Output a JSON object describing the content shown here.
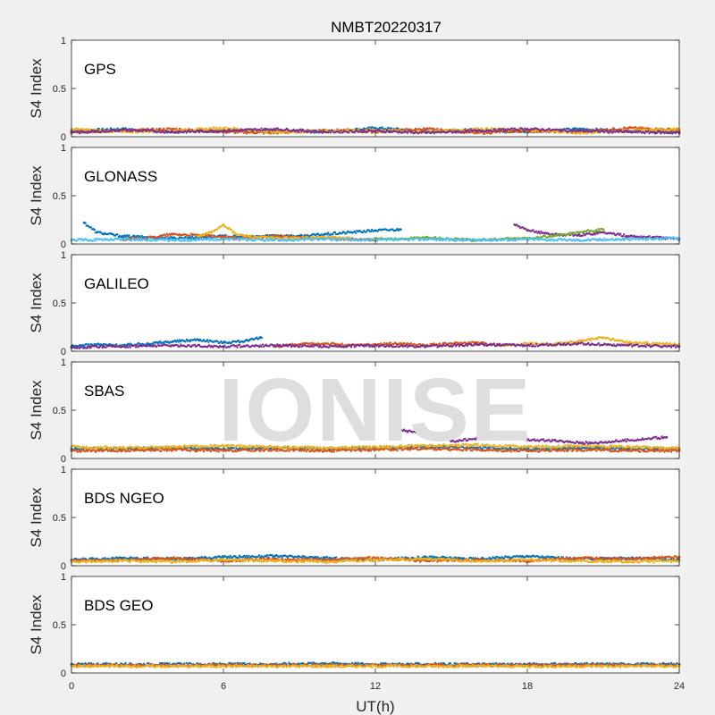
{
  "chart_data": {
    "type": "scatter",
    "title": "NMBT20220317",
    "xlabel": "UT(h)",
    "xlim": [
      0,
      24
    ],
    "xticks": [
      0,
      6,
      12,
      18,
      24
    ],
    "watermark": "IONISE",
    "colors": [
      "#0072BD",
      "#D95319",
      "#EDB120",
      "#7E2F8E",
      "#77AC30",
      "#4DBEEE",
      "#A2142F"
    ],
    "panels": [
      {
        "label": "GPS",
        "ylabel": "S4 Index",
        "ylim": [
          0,
          1
        ],
        "yticks": [
          "0",
          "0.5",
          "1"
        ],
        "series": [
          {
            "x": [
              0,
              2,
              4,
              6,
              8,
              10,
              12,
              14,
              16,
              18,
              20,
              22,
              24
            ],
            "y": [
              0.06,
              0.08,
              0.05,
              0.07,
              0.06,
              0.05,
              0.09,
              0.06,
              0.07,
              0.05,
              0.08,
              0.06,
              0.05
            ]
          },
          {
            "x": [
              0,
              2,
              4,
              6,
              8,
              10,
              12,
              14,
              16,
              18,
              20,
              22,
              24
            ],
            "y": [
              0.05,
              0.06,
              0.08,
              0.05,
              0.04,
              0.07,
              0.05,
              0.08,
              0.04,
              0.06,
              0.05,
              0.09,
              0.07
            ]
          },
          {
            "x": [
              0,
              2,
              4,
              6,
              8,
              10,
              12,
              14,
              16,
              18,
              20,
              22,
              24
            ],
            "y": [
              0.08,
              0.05,
              0.06,
              0.09,
              0.05,
              0.06,
              0.07,
              0.05,
              0.08,
              0.07,
              0.04,
              0.06,
              0.08
            ]
          },
          {
            "x": [
              0,
              2,
              4,
              6,
              8,
              10,
              12,
              14,
              16,
              18,
              20,
              22,
              24
            ],
            "y": [
              0.04,
              0.07,
              0.05,
              0.06,
              0.08,
              0.05,
              0.06,
              0.04,
              0.06,
              0.08,
              0.06,
              0.05,
              0.04
            ]
          }
        ]
      },
      {
        "label": "GLONASS",
        "ylabel": "S4 Index",
        "ylim": [
          0,
          1
        ],
        "yticks": [
          "0",
          "0.5",
          "1"
        ],
        "series": [
          {
            "x": [
              0.5,
              1,
              2,
              3,
              4,
              5,
              6,
              7,
              8,
              9,
              10,
              11,
              12,
              13
            ],
            "y": [
              0.22,
              0.12,
              0.08,
              0.07,
              0.06,
              0.07,
              0.08,
              0.07,
              0.09,
              0.08,
              0.1,
              0.12,
              0.14,
              0.15
            ]
          },
          {
            "x": [
              2,
              3,
              4,
              5,
              6,
              7,
              8,
              9,
              10,
              11,
              12
            ],
            "y": [
              0.05,
              0.06,
              0.1,
              0.09,
              0.07,
              0.06,
              0.08,
              0.07,
              0.06,
              0.05,
              0.04
            ]
          },
          {
            "x": [
              5,
              5.5,
              6,
              6.5,
              7,
              8,
              9,
              10,
              11
            ],
            "y": [
              0.08,
              0.12,
              0.2,
              0.1,
              0.08,
              0.06,
              0.06,
              0.07,
              0.06
            ]
          },
          {
            "x": [
              17.5,
              18,
              19,
              20,
              21,
              22,
              23,
              24
            ],
            "y": [
              0.2,
              0.14,
              0.1,
              0.09,
              0.12,
              0.08,
              0.07,
              0.05
            ]
          },
          {
            "x": [
              12,
              13,
              14,
              15,
              16,
              17,
              18,
              19,
              20,
              21
            ],
            "y": [
              0.06,
              0.05,
              0.07,
              0.05,
              0.04,
              0.05,
              0.06,
              0.08,
              0.12,
              0.15
            ]
          },
          {
            "x": [
              0,
              2,
              4,
              6,
              8,
              10,
              12,
              14,
              16,
              18,
              20,
              22,
              24
            ],
            "y": [
              0.04,
              0.05,
              0.04,
              0.05,
              0.04,
              0.05,
              0.04,
              0.05,
              0.04,
              0.05,
              0.04,
              0.05,
              0.06
            ]
          }
        ]
      },
      {
        "label": "GALILEO",
        "ylabel": "S4 Index",
        "ylim": [
          0,
          1
        ],
        "yticks": [
          "0",
          "0.5",
          "1"
        ],
        "series": [
          {
            "x": [
              0,
              1,
              2,
              3,
              4,
              5,
              6,
              7,
              7.5
            ],
            "y": [
              0.05,
              0.07,
              0.06,
              0.08,
              0.1,
              0.12,
              0.09,
              0.11,
              0.14
            ]
          },
          {
            "x": [
              8,
              9,
              10,
              11,
              12,
              13,
              14,
              15,
              16,
              17
            ],
            "y": [
              0.05,
              0.07,
              0.08,
              0.06,
              0.07,
              0.08,
              0.06,
              0.08,
              0.09,
              0.06
            ]
          },
          {
            "x": [
              17,
              18,
              19,
              20,
              21,
              22,
              23,
              24
            ],
            "y": [
              0.06,
              0.08,
              0.07,
              0.1,
              0.14,
              0.09,
              0.08,
              0.07
            ]
          },
          {
            "x": [
              0,
              2,
              4,
              6,
              8,
              10,
              12,
              14,
              16,
              18,
              20,
              22,
              24
            ],
            "y": [
              0.04,
              0.05,
              0.06,
              0.05,
              0.06,
              0.05,
              0.06,
              0.05,
              0.07,
              0.06,
              0.08,
              0.06,
              0.05
            ]
          }
        ]
      },
      {
        "label": "SBAS",
        "ylabel": "S4 Index",
        "ylim": [
          0,
          1
        ],
        "yticks": [
          "0",
          "0.5",
          "1"
        ],
        "series": [
          {
            "x": [
              0,
              2,
              4,
              6,
              8,
              10,
              12,
              14,
              16,
              18,
              20,
              22,
              24
            ],
            "y": [
              0.1,
              0.1,
              0.11,
              0.1,
              0.11,
              0.1,
              0.11,
              0.12,
              0.11,
              0.1,
              0.11,
              0.1,
              0.1
            ]
          },
          {
            "x": [
              0,
              2,
              4,
              6,
              8,
              10,
              12,
              14,
              16,
              18,
              20,
              22,
              24
            ],
            "y": [
              0.08,
              0.08,
              0.09,
              0.08,
              0.09,
              0.08,
              0.09,
              0.1,
              0.09,
              0.08,
              0.09,
              0.08,
              0.08
            ]
          },
          {
            "x": [
              0,
              2,
              4,
              6,
              8,
              10,
              12,
              14,
              16,
              18,
              20,
              22,
              24
            ],
            "y": [
              0.12,
              0.11,
              0.12,
              0.13,
              0.12,
              0.11,
              0.12,
              0.13,
              0.14,
              0.12,
              0.13,
              0.12,
              0.11
            ]
          },
          {
            "x": [
              13,
              14.5,
              15,
              16.5,
              20.5,
              23.5
            ],
            "y": [
              0.3,
              0.22,
              0.18,
              0.22,
              0.16,
              0.22
            ]
          }
        ]
      },
      {
        "label": "BDS NGEO",
        "ylabel": "S4 Index",
        "ylim": [
          0,
          1
        ],
        "yticks": [
          "0",
          "0.5",
          "1"
        ],
        "series": [
          {
            "x": [
              0,
              2,
              4,
              6,
              8,
              10,
              12,
              14,
              16,
              18,
              20,
              22,
              24
            ],
            "y": [
              0.06,
              0.08,
              0.07,
              0.09,
              0.1,
              0.08,
              0.06,
              0.09,
              0.07,
              0.1,
              0.07,
              0.08,
              0.06
            ]
          },
          {
            "x": [
              0,
              2,
              4,
              6,
              8,
              10,
              12,
              14,
              16,
              18,
              20,
              22,
              24
            ],
            "y": [
              0.05,
              0.06,
              0.08,
              0.05,
              0.07,
              0.06,
              0.08,
              0.05,
              0.06,
              0.05,
              0.08,
              0.07,
              0.09
            ]
          },
          {
            "x": [
              0,
              2,
              4,
              6,
              8,
              10,
              12,
              14,
              16,
              18,
              20,
              22,
              24
            ],
            "y": [
              0.04,
              0.05,
              0.04,
              0.06,
              0.05,
              0.04,
              0.06,
              0.07,
              0.05,
              0.06,
              0.05,
              0.04,
              0.05
            ]
          }
        ]
      },
      {
        "label": "BDS GEO",
        "ylabel": "S4 Index",
        "ylim": [
          0,
          1
        ],
        "yticks": [
          "0",
          "0.5",
          "1"
        ],
        "series": [
          {
            "x": [
              0,
              2,
              4,
              6,
              8,
              10,
              12,
              14,
              16,
              18,
              20,
              22,
              24
            ],
            "y": [
              0.09,
              0.09,
              0.09,
              0.09,
              0.09,
              0.1,
              0.09,
              0.09,
              0.09,
              0.09,
              0.09,
              0.09,
              0.09
            ]
          },
          {
            "x": [
              0,
              2,
              4,
              6,
              8,
              10,
              12,
              14,
              16,
              18,
              20,
              22,
              24
            ],
            "y": [
              0.08,
              0.08,
              0.08,
              0.08,
              0.08,
              0.08,
              0.08,
              0.08,
              0.08,
              0.08,
              0.08,
              0.08,
              0.08
            ]
          },
          {
            "x": [
              0,
              2,
              4,
              6,
              8,
              10,
              12,
              14,
              16,
              18,
              20,
              22,
              24
            ],
            "y": [
              0.07,
              0.07,
              0.07,
              0.07,
              0.07,
              0.07,
              0.07,
              0.07,
              0.07,
              0.07,
              0.07,
              0.07,
              0.07
            ]
          }
        ]
      }
    ]
  }
}
